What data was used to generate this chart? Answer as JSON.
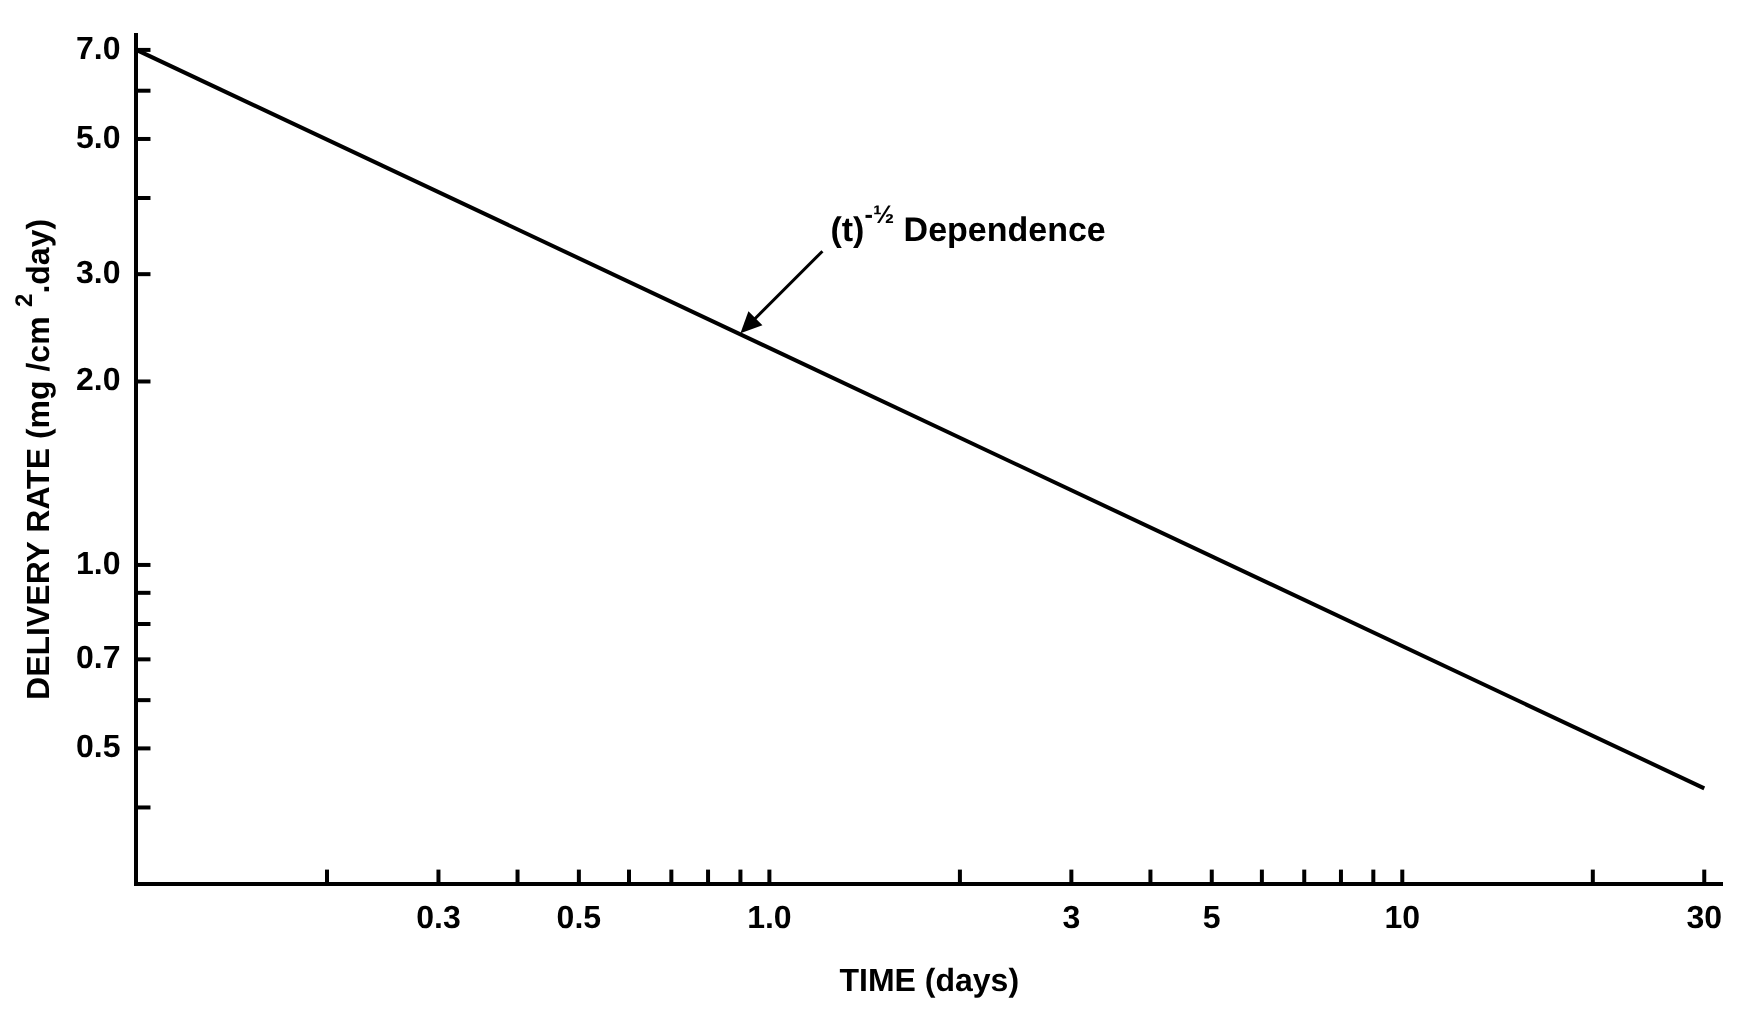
{
  "chart_data": {
    "type": "line",
    "xlabel": "TIME (days)",
    "ylabel": "DELIVERY RATE (mg /cm $^{2}$.day)",
    "x": [
      0.1,
      30
    ],
    "series": [
      {
        "color": "#000000",
        "values": [
          7.0,
          0.43
        ]
      }
    ],
    "log": "xy",
    "grid": false,
    "legend": false,
    "marker": "none",
    "line_style": "solid",
    "xlim": [
      0.1,
      32
    ],
    "xticks": [
      {
        "value": 0.2,
        "label": null
      },
      0.3,
      {
        "value": 0.4,
        "label": null
      },
      0.5,
      {
        "value": 0.6,
        "label": null
      },
      {
        "value": 0.7,
        "label": null
      },
      {
        "value": 0.8,
        "label": null
      },
      {
        "value": 0.9,
        "label": null
      },
      {
        "value": 1,
        "label": "1.0"
      },
      {
        "value": 2,
        "label": null
      },
      3,
      {
        "value": 4,
        "label": null
      },
      5,
      {
        "value": 6,
        "label": null
      },
      {
        "value": 7,
        "label": null
      },
      {
        "value": 8,
        "label": null
      },
      {
        "value": 9,
        "label": null
      },
      10,
      {
        "value": 20,
        "label": null
      },
      30
    ],
    "ylim": [
      0.3,
      7.4
    ],
    "yticks": [
      {
        "value": 0.4,
        "label": null
      },
      0.5,
      {
        "value": 0.6,
        "label": null
      },
      0.7,
      {
        "value": 0.8,
        "label": null
      },
      {
        "value": 0.9,
        "label": null
      },
      {
        "value": 1,
        "label": "1.0"
      },
      {
        "value": 2,
        "label": "2.0"
      },
      {
        "value": 3,
        "label": "3.0"
      },
      {
        "value": 4,
        "label": null
      },
      {
        "value": 5,
        "label": "5.0"
      },
      {
        "value": 6,
        "label": null
      },
      {
        "value": 7,
        "label": "7.0"
      }
    ],
    "annotations": [
      {
        "text": "(t)$^{-½}$ Dependence",
        "x": 0.9,
        "y": 2.4
      }
    ]
  }
}
